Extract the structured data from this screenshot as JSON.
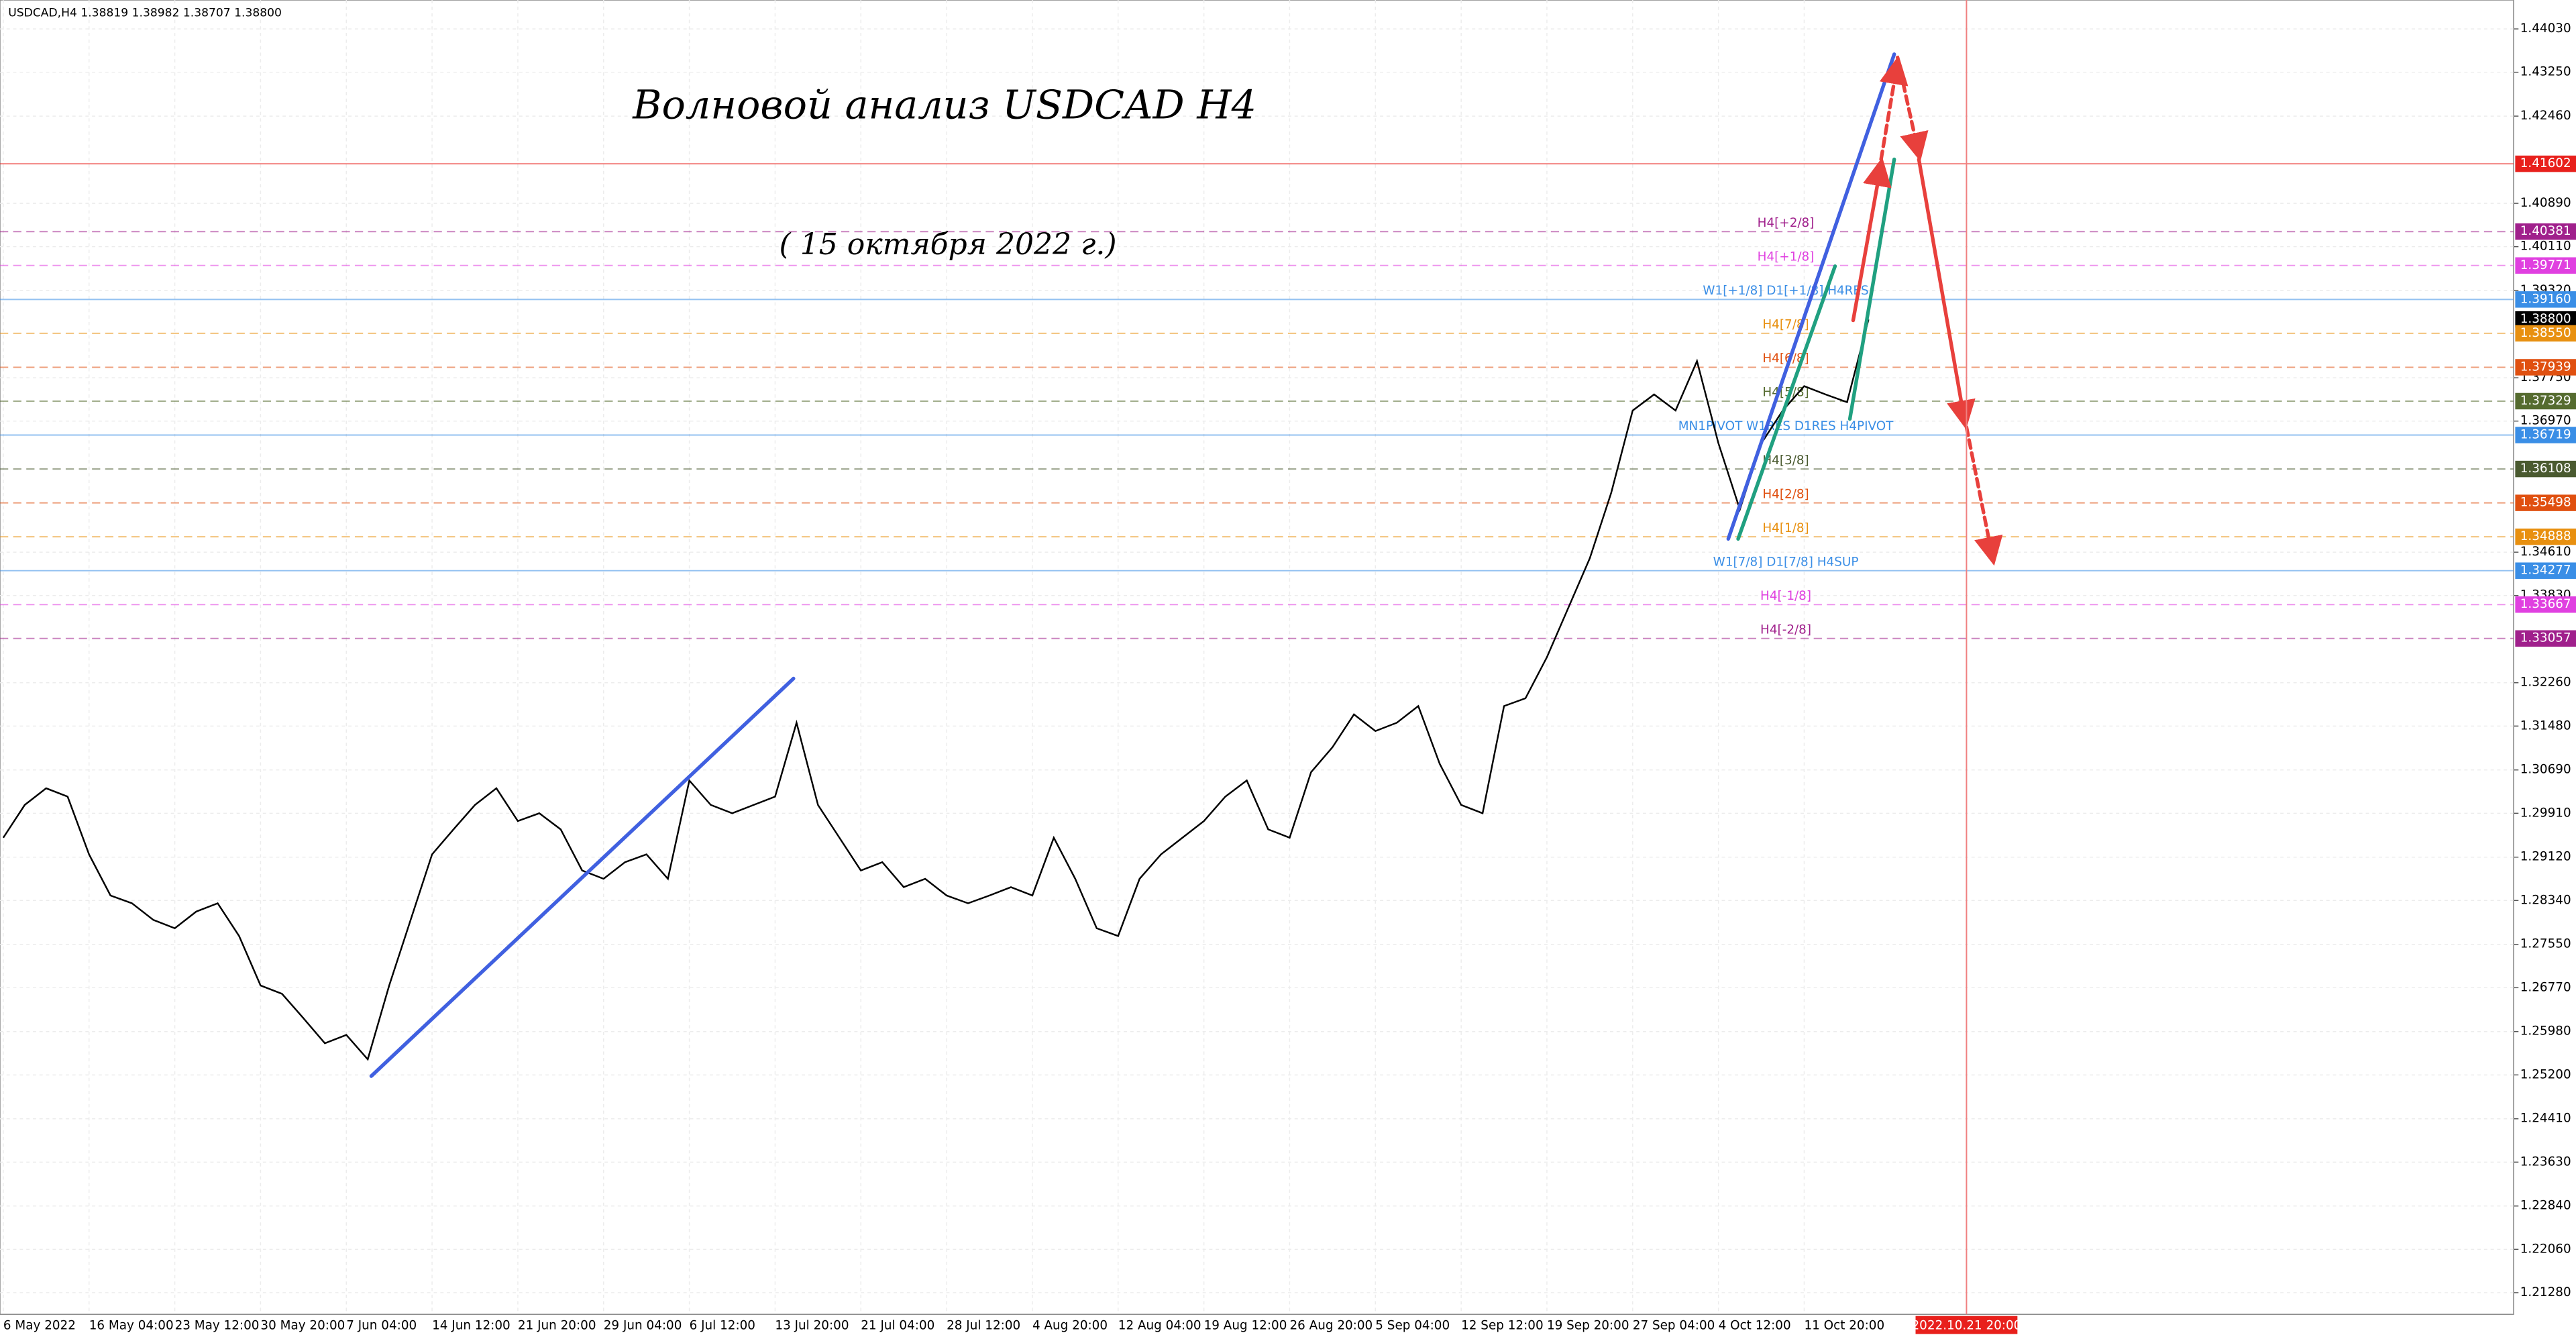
{
  "chart_data": {
    "type": "line",
    "header": "USDCAD,H4  1.38819 1.38982 1.38707 1.38800",
    "title": "Волновой анализ USDCAD H4",
    "subtitle": "( 15 октября 2022 г.)",
    "categories": [
      "6 May 2022",
      null,
      null,
      null,
      "16 May 04:00",
      null,
      null,
      null,
      "23 May 12:00",
      null,
      null,
      null,
      "30 May 20:00",
      null,
      null,
      null,
      "7 Jun 04:00",
      null,
      null,
      null,
      "14 Jun 12:00",
      null,
      null,
      null,
      "21 Jun 20:00",
      null,
      null,
      null,
      "29 Jun 04:00",
      null,
      null,
      null,
      "6 Jul 12:00",
      null,
      null,
      null,
      "13 Jul 20:00",
      null,
      null,
      null,
      "21 Jul 04:00",
      null,
      null,
      null,
      "28 Jul 12:00",
      null,
      null,
      null,
      "4 Aug 20:00",
      null,
      null,
      null,
      "12 Aug 04:00",
      null,
      null,
      null,
      "19 Aug 12:00",
      null,
      null,
      null,
      "26 Aug 20:00",
      null,
      null,
      null,
      "5 Sep 04:00",
      null,
      null,
      null,
      "12 Sep 12:00",
      null,
      null,
      null,
      "19 Sep 20:00",
      null,
      null,
      null,
      "27 Sep 04:00",
      null,
      null,
      null,
      "4 Oct 12:00",
      null,
      null,
      null,
      "11 Oct 20:00",
      null,
      null,
      null
    ],
    "series": [
      {
        "color": "#000000",
        "values": [
          1.2947,
          1.3006,
          1.3036,
          1.3021,
          1.2917,
          1.2843,
          1.2829,
          1.2799,
          1.2784,
          1.2814,
          1.2829,
          1.277,
          1.2681,
          1.2666,
          1.2622,
          1.2577,
          1.2592,
          1.2548,
          1.2681,
          1.2799,
          1.2917,
          1.2962,
          1.3006,
          1.3036,
          1.2977,
          1.2991,
          1.2962,
          1.2888,
          1.2873,
          1.2903,
          1.2917,
          1.2873,
          1.305,
          1.3006,
          1.2991,
          1.3006,
          1.3021,
          1.3154,
          1.3006,
          1.2947,
          1.2888,
          1.2903,
          1.2858,
          1.2873,
          1.2843,
          1.2829,
          1.2843,
          1.2858,
          1.2843,
          1.2947,
          1.2873,
          1.2784,
          1.277,
          1.2873,
          1.2917,
          1.2947,
          1.2977,
          1.3021,
          1.305,
          1.2962,
          1.2947,
          1.3065,
          1.311,
          1.3169,
          1.3139,
          1.3154,
          1.3184,
          1.308,
          1.3006,
          1.2991,
          1.3184,
          1.3198,
          1.3272,
          1.3361,
          1.345,
          1.3568,
          1.3716,
          1.3745,
          1.3716,
          1.3805,
          1.3657,
          1.3538,
          1.3657,
          1.3716,
          1.376,
          1.3745,
          1.3731,
          1.388
        ]
      }
    ],
    "ylim": [
      1.2089,
      1.4455
    ],
    "yticks": [
      {
        "value": 1.4403,
        "label": "1.44030"
      },
      {
        "value": 1.4325,
        "label": "1.43250"
      },
      {
        "value": 1.4246,
        "label": "1.42460"
      },
      {
        "value": 1.4089,
        "label": "1.40890"
      },
      {
        "value": 1.4011,
        "label": "1.40110"
      },
      {
        "value": 1.3932,
        "label": "1.39320"
      },
      {
        "value": 1.3775,
        "label": "1.37750"
      },
      {
        "value": 1.3697,
        "label": "1.36970"
      },
      {
        "value": 1.3461,
        "label": "1.34610"
      },
      {
        "value": 1.3383,
        "label": "1.33830"
      },
      {
        "value": 1.3226,
        "label": "1.32260"
      },
      {
        "value": 1.3148,
        "label": "1.31480"
      },
      {
        "value": 1.3069,
        "label": "1.30690"
      },
      {
        "value": 1.2991,
        "label": "1.29910"
      },
      {
        "value": 1.2912,
        "label": "1.29120"
      },
      {
        "value": 1.2834,
        "label": "1.28340"
      },
      {
        "value": 1.2755,
        "label": "1.27550"
      },
      {
        "value": 1.2677,
        "label": "1.26770"
      },
      {
        "value": 1.2598,
        "label": "1.25980"
      },
      {
        "value": 1.252,
        "label": "1.25200"
      },
      {
        "value": 1.2441,
        "label": "1.24410"
      },
      {
        "value": 1.2363,
        "label": "1.23630"
      },
      {
        "value": 1.2284,
        "label": "1.22840"
      },
      {
        "value": 1.2206,
        "label": "1.22060"
      },
      {
        "value": 1.2128,
        "label": "1.21280"
      }
    ],
    "grid": true,
    "levels": [
      {
        "value": 1.41602,
        "value_label": "1.41602",
        "color": "#e8201c",
        "style": "solid"
      },
      {
        "name": "H4[+2/8]",
        "value": 1.40381,
        "value_label": "1.40381",
        "color": "#a0208c",
        "style": "dashed"
      },
      {
        "name": "H4[+1/8]",
        "value": 1.39771,
        "value_label": "1.39771",
        "color": "#e040e0",
        "style": "dashed"
      },
      {
        "name": "W1[+1/8] D1[+1/8] H4RES",
        "value": 1.3916,
        "value_label": "1.39160",
        "color": "#3a8ee6",
        "style": "solid"
      },
      {
        "value": 1.388,
        "value_label": "1.38800",
        "color": "#000000",
        "style": "none"
      },
      {
        "name": "H4[7/8]",
        "value": 1.3855,
        "value_label": "1.38550",
        "color": "#e89010",
        "style": "dashed"
      },
      {
        "name": "H4[6/8]",
        "value": 1.37939,
        "value_label": "1.37939",
        "color": "#e05010",
        "style": "dashed"
      },
      {
        "name": "H4[5/8]",
        "value": 1.37329,
        "value_label": "1.37329",
        "color": "#556b2f",
        "style": "dashed"
      },
      {
        "name": "MN1PIVOT W1RES D1RES H4PIVOT",
        "value": 1.36719,
        "value_label": "1.36719",
        "color": "#3a8ee6",
        "style": "solid"
      },
      {
        "name": "H4[3/8]",
        "value": 1.36108,
        "value_label": "1.36108",
        "color": "#4a5a30",
        "style": "dashed"
      },
      {
        "name": "H4[2/8]",
        "value": 1.35498,
        "value_label": "1.35498",
        "color": "#e05010",
        "style": "dashed"
      },
      {
        "name": "H4[1/8]",
        "value": 1.34888,
        "value_label": "1.34888",
        "color": "#e89010",
        "style": "dashed"
      },
      {
        "name": "W1[7/8] D1[7/8] H4SUP",
        "value": 1.34277,
        "value_label": "1.34277",
        "color": "#3a8ee6",
        "style": "solid"
      },
      {
        "name": "H4[-1/8]",
        "value": 1.33667,
        "value_label": "1.33667",
        "color": "#e040e0",
        "style": "dashed"
      },
      {
        "name": "H4[-2/8]",
        "value": 1.33057,
        "value_label": "1.33057",
        "color": "#a0208c",
        "style": "dashed"
      }
    ],
    "vline_label": "2022.10.21 20:00"
  }
}
